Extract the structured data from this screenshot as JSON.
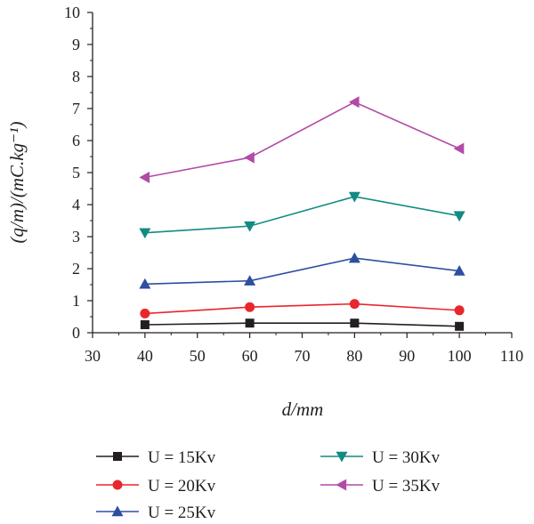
{
  "chart_data": {
    "type": "line",
    "xlabel": "d/mm",
    "ylabel": "(q/m)/(mC.kg⁻¹)",
    "xlim": [
      30,
      110
    ],
    "ylim": [
      0,
      10
    ],
    "x_ticks": [
      30,
      40,
      50,
      60,
      70,
      80,
      90,
      100,
      110
    ],
    "y_ticks": [
      0,
      1,
      2,
      3,
      4,
      5,
      6,
      7,
      8,
      9,
      10
    ],
    "x_tick_labels": [
      "30",
      "40",
      "50",
      "60",
      "70",
      "80",
      "90",
      "100",
      "110"
    ],
    "y_tick_labels": [
      "0",
      "1",
      "2",
      "3",
      "4",
      "5",
      "6",
      "7",
      "8",
      "9",
      "10"
    ],
    "grid": false,
    "legend_position": "bottom",
    "x": [
      40,
      60,
      80,
      100
    ],
    "series": [
      {
        "name": "U = 15Kv",
        "values": [
          0.25,
          0.3,
          0.3,
          0.2
        ],
        "color": "#231f20",
        "marker": "square"
      },
      {
        "name": "U = 20Kv",
        "values": [
          0.6,
          0.8,
          0.9,
          0.7
        ],
        "color": "#e8262b",
        "marker": "circle"
      },
      {
        "name": "U = 25Kv",
        "values": [
          1.52,
          1.62,
          2.33,
          1.93
        ],
        "color": "#2e4fa0",
        "marker": "triangle-up"
      },
      {
        "name": "U = 30Kv",
        "values": [
          3.12,
          3.33,
          4.25,
          3.65
        ],
        "color": "#138a83",
        "marker": "triangle-down"
      },
      {
        "name": "U = 35Kv",
        "values": [
          4.85,
          5.47,
          7.2,
          5.75
        ],
        "color": "#b24aa6",
        "marker": "triangle-left"
      }
    ]
  }
}
